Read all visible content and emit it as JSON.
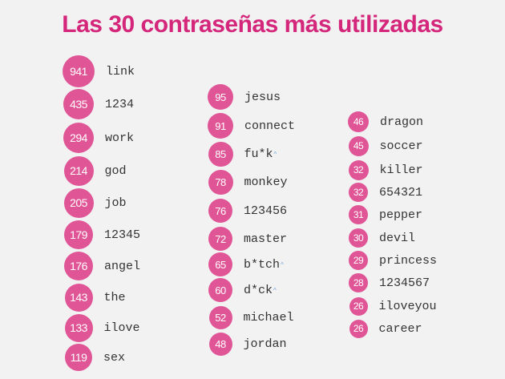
{
  "title": "Las 30 contraseñas más utilizadas",
  "colors": {
    "title": "#d4267a",
    "badge": "#e05596",
    "text": "#333333",
    "background": "#f2f2f3",
    "asterisk_mark": "#6fa3d8"
  },
  "columns": [
    {
      "items": [
        {
          "count": "941",
          "password": "link"
        },
        {
          "count": "435",
          "password": "1234"
        },
        {
          "count": "294",
          "password": "work"
        },
        {
          "count": "214",
          "password": "god"
        },
        {
          "count": "205",
          "password": "job"
        },
        {
          "count": "179",
          "password": "12345"
        },
        {
          "count": "176",
          "password": "angel"
        },
        {
          "count": "143",
          "password": "the"
        },
        {
          "count": "133",
          "password": "ilove"
        },
        {
          "count": "119",
          "password": "sex"
        }
      ]
    },
    {
      "items": [
        {
          "count": "95",
          "password": "jesus"
        },
        {
          "count": "91",
          "password": "connect"
        },
        {
          "count": "85",
          "password": "fu*k",
          "mark": "^"
        },
        {
          "count": "78",
          "password": "monkey"
        },
        {
          "count": "76",
          "password": "123456"
        },
        {
          "count": "72",
          "password": "master"
        },
        {
          "count": "65",
          "password": "b*tch",
          "mark": "^"
        },
        {
          "count": "60",
          "password": "d*ck",
          "mark": "^"
        },
        {
          "count": "52",
          "password": "michael"
        },
        {
          "count": "48",
          "password": "jordan"
        }
      ]
    },
    {
      "items": [
        {
          "count": "46",
          "password": "dragon"
        },
        {
          "count": "45",
          "password": "soccer"
        },
        {
          "count": "32",
          "password": "killer"
        },
        {
          "count": "32",
          "password": "654321"
        },
        {
          "count": "31",
          "password": "pepper"
        },
        {
          "count": "30",
          "password": "devil"
        },
        {
          "count": "29",
          "password": "princess"
        },
        {
          "count": "28",
          "password": "1234567"
        },
        {
          "count": "26",
          "password": "iloveyou"
        },
        {
          "count": "26",
          "password": "career"
        }
      ]
    }
  ]
}
